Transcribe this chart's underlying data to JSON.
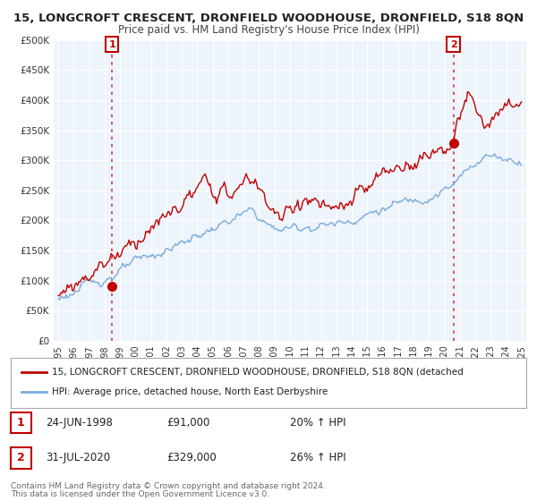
{
  "title": "15, LONGCROFT CRESCENT, DRONFIELD WOODHOUSE, DRONFIELD, S18 8QN",
  "subtitle": "Price paid vs. HM Land Registry's House Price Index (HPI)",
  "legend_line1": "15, LONGCROFT CRESCENT, DRONFIELD WOODHOUSE, DRONFIELD, S18 8QN (detached",
  "legend_line2": "HPI: Average price, detached house, North East Derbyshire",
  "footnote1": "Contains HM Land Registry data © Crown copyright and database right 2024.",
  "footnote2": "This data is licensed under the Open Government Licence v3.0.",
  "marker1_label": "1",
  "marker1_date": "24-JUN-1998",
  "marker1_price": "£91,000",
  "marker1_hpi": "20% ↑ HPI",
  "marker1_x": 1998.48,
  "marker1_y": 91000,
  "marker2_label": "2",
  "marker2_date": "31-JUL-2020",
  "marker2_price": "£329,000",
  "marker2_hpi": "26% ↑ HPI",
  "marker2_x": 2020.58,
  "marker2_y": 329000,
  "ylim": [
    0,
    500000
  ],
  "yticks": [
    0,
    50000,
    100000,
    150000,
    200000,
    250000,
    300000,
    350000,
    400000,
    450000,
    500000
  ],
  "ytick_labels": [
    "£0",
    "£50K",
    "£100K",
    "£150K",
    "£200K",
    "£250K",
    "£300K",
    "£350K",
    "£400K",
    "£450K",
    "£500K"
  ],
  "xlim_start": 1994.7,
  "xlim_end": 2025.3,
  "xtick_years": [
    1995,
    1996,
    1997,
    1998,
    1999,
    2000,
    2001,
    2002,
    2003,
    2004,
    2005,
    2006,
    2007,
    2008,
    2009,
    2010,
    2011,
    2012,
    2013,
    2014,
    2015,
    2016,
    2017,
    2018,
    2019,
    2020,
    2021,
    2022,
    2023,
    2024,
    2025
  ],
  "hpi_color": "#7aabdc",
  "price_color": "#c00000",
  "dashed_color": "#c84040",
  "bg_color": "#ffffff",
  "grid_color": "#d8e4f0",
  "chart_bg": "#eef4fb"
}
